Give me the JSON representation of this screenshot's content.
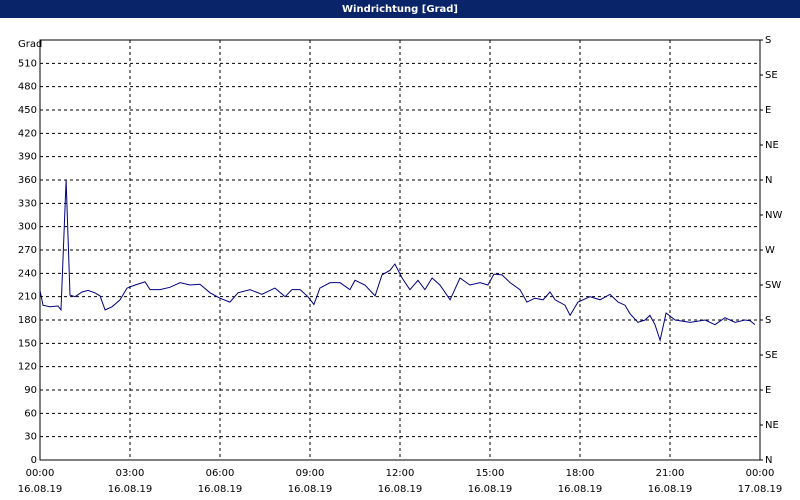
{
  "chart_data": {
    "type": "line",
    "title": "Windrichtung [Grad]",
    "y_label": "Grad",
    "x": [
      0,
      0.1,
      0.33,
      0.6,
      0.7,
      0.87,
      1.0,
      1.17,
      1.4,
      1.6,
      1.83,
      2.0,
      2.17,
      2.4,
      2.67,
      2.9,
      3.17,
      3.5,
      3.67,
      4.0,
      4.33,
      4.67,
      5.0,
      5.33,
      5.67,
      6.0,
      6.33,
      6.6,
      7.0,
      7.4,
      7.83,
      8.17,
      8.4,
      8.67,
      8.93,
      9.13,
      9.33,
      9.67,
      10.0,
      10.33,
      10.5,
      10.83,
      11.17,
      11.4,
      11.67,
      11.83,
      12.07,
      12.33,
      12.6,
      12.83,
      13.07,
      13.33,
      13.67,
      14.0,
      14.33,
      14.67,
      14.93,
      15.13,
      15.4,
      15.67,
      16.0,
      16.23,
      16.5,
      16.77,
      17.0,
      17.17,
      17.5,
      17.67,
      17.93,
      18.33,
      18.67,
      19.0,
      19.27,
      19.5,
      19.67,
      19.93,
      20.17,
      20.33,
      20.5,
      20.67,
      20.87,
      21.17,
      21.67,
      22.17,
      22.5,
      22.83,
      23.17,
      23.5,
      23.67,
      23.83
    ],
    "series": [
      {
        "name": "Windrichtung",
        "color": "#000080",
        "values": [
          218,
          199,
          197,
          198,
          193,
          360,
          212,
          210,
          216,
          218,
          215,
          211,
          193,
          197,
          206,
          221,
          225,
          229,
          219,
          219,
          222,
          228,
          225,
          226,
          215,
          208,
          203,
          215,
          219,
          213,
          221,
          210,
          219,
          219,
          210,
          200,
          221,
          228,
          228,
          219,
          231,
          225,
          211,
          238,
          244,
          252,
          234,
          219,
          231,
          219,
          234,
          225,
          206,
          234,
          225,
          228,
          225,
          239,
          238,
          228,
          219,
          203,
          208,
          206,
          216,
          206,
          199,
          186,
          203,
          210,
          206,
          213,
          203,
          199,
          188,
          177,
          180,
          186,
          174,
          154,
          189,
          180,
          177,
          180,
          174,
          183,
          177,
          180,
          179,
          174
        ]
      }
    ],
    "xlim": [
      0,
      24
    ],
    "xticks": [
      {
        "value": 0,
        "label": "00:00"
      },
      {
        "value": 3,
        "label": "03:00"
      },
      {
        "value": 6,
        "label": "06:00"
      },
      {
        "value": 9,
        "label": "09:00"
      },
      {
        "value": 12,
        "label": "12:00"
      },
      {
        "value": 15,
        "label": "15:00"
      },
      {
        "value": 18,
        "label": "18:00"
      },
      {
        "value": 21,
        "label": "21:00"
      },
      {
        "value": 24,
        "label": "00:00"
      }
    ],
    "xtick_dates": [
      "16.08.19",
      "16.08.19",
      "16.08.19",
      "16.08.19",
      "16.08.19",
      "16.08.19",
      "16.08.19",
      "16.08.19",
      "17.08.19"
    ],
    "ylim": [
      0,
      540
    ],
    "yticks": [
      0,
      30,
      60,
      90,
      120,
      150,
      180,
      210,
      240,
      270,
      300,
      330,
      360,
      390,
      420,
      450,
      480,
      510
    ],
    "y2lim": [
      0,
      540
    ],
    "y2ticks": [
      {
        "value": 0,
        "label": "N"
      },
      {
        "value": 45,
        "label": "NE"
      },
      {
        "value": 90,
        "label": "E"
      },
      {
        "value": 135,
        "label": "SE"
      },
      {
        "value": 180,
        "label": "S"
      },
      {
        "value": 225,
        "label": "SW"
      },
      {
        "value": 270,
        "label": "W"
      },
      {
        "value": 315,
        "label": "NW"
      },
      {
        "value": 360,
        "label": "N"
      },
      {
        "value": 405,
        "label": "NE"
      },
      {
        "value": 450,
        "label": "E"
      },
      {
        "value": 495,
        "label": "SE"
      },
      {
        "value": 540,
        "label": "S"
      }
    ],
    "grid": true
  }
}
